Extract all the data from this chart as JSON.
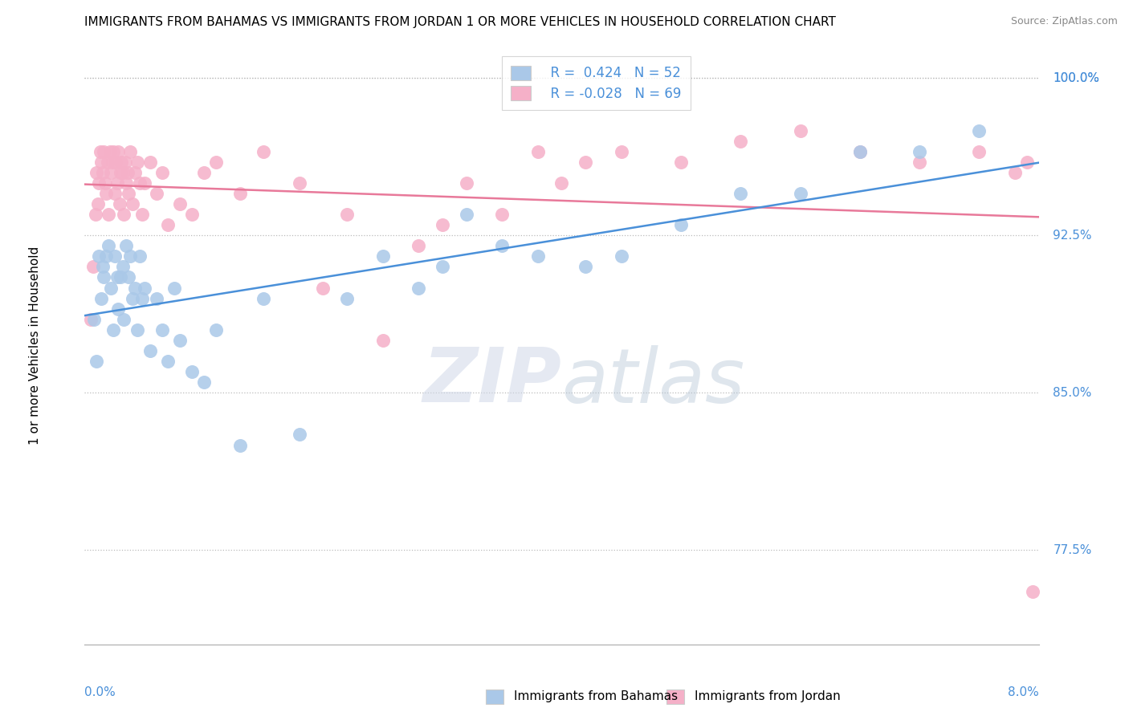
{
  "title": "IMMIGRANTS FROM BAHAMAS VS IMMIGRANTS FROM JORDAN 1 OR MORE VEHICLES IN HOUSEHOLD CORRELATION CHART",
  "source": "Source: ZipAtlas.com",
  "ylabel": "1 or more Vehicles in Household",
  "xmin": 0.0,
  "xmax": 8.0,
  "ymin": 73.0,
  "ymax": 101.5,
  "yticks": [
    77.5,
    85.0,
    92.5,
    100.0
  ],
  "legend_blue_r": "R =  0.424",
  "legend_blue_n": "N = 52",
  "legend_pink_r": "R = -0.028",
  "legend_pink_n": "N = 69",
  "blue_scatter_color": "#aac8e8",
  "pink_scatter_color": "#f5b0c8",
  "blue_line_color": "#4a90d9",
  "pink_line_color": "#e8799a",
  "label_blue": "Immigrants from Bahamas",
  "label_pink": "Immigrants from Jordan",
  "watermark_zip": "ZIP",
  "watermark_atlas": "atlas",
  "bahamas_points": [
    [
      0.08,
      88.5
    ],
    [
      0.1,
      86.5
    ],
    [
      0.12,
      91.5
    ],
    [
      0.14,
      89.5
    ],
    [
      0.15,
      91.0
    ],
    [
      0.16,
      90.5
    ],
    [
      0.18,
      91.5
    ],
    [
      0.2,
      92.0
    ],
    [
      0.22,
      90.0
    ],
    [
      0.24,
      88.0
    ],
    [
      0.25,
      91.5
    ],
    [
      0.27,
      90.5
    ],
    [
      0.28,
      89.0
    ],
    [
      0.3,
      90.5
    ],
    [
      0.32,
      91.0
    ],
    [
      0.33,
      88.5
    ],
    [
      0.35,
      92.0
    ],
    [
      0.37,
      90.5
    ],
    [
      0.38,
      91.5
    ],
    [
      0.4,
      89.5
    ],
    [
      0.42,
      90.0
    ],
    [
      0.44,
      88.0
    ],
    [
      0.46,
      91.5
    ],
    [
      0.48,
      89.5
    ],
    [
      0.5,
      90.0
    ],
    [
      0.55,
      87.0
    ],
    [
      0.6,
      89.5
    ],
    [
      0.65,
      88.0
    ],
    [
      0.7,
      86.5
    ],
    [
      0.75,
      90.0
    ],
    [
      0.8,
      87.5
    ],
    [
      0.9,
      86.0
    ],
    [
      1.0,
      85.5
    ],
    [
      1.1,
      88.0
    ],
    [
      1.3,
      82.5
    ],
    [
      1.5,
      89.5
    ],
    [
      1.8,
      83.0
    ],
    [
      2.2,
      89.5
    ],
    [
      2.5,
      91.5
    ],
    [
      2.8,
      90.0
    ],
    [
      3.0,
      91.0
    ],
    [
      3.2,
      93.5
    ],
    [
      3.5,
      92.0
    ],
    [
      3.8,
      91.5
    ],
    [
      4.2,
      91.0
    ],
    [
      4.5,
      91.5
    ],
    [
      5.0,
      93.0
    ],
    [
      5.5,
      94.5
    ],
    [
      6.0,
      94.5
    ],
    [
      6.5,
      96.5
    ],
    [
      7.0,
      96.5
    ],
    [
      7.5,
      97.5
    ]
  ],
  "jordan_points": [
    [
      0.05,
      88.5
    ],
    [
      0.07,
      91.0
    ],
    [
      0.09,
      93.5
    ],
    [
      0.1,
      95.5
    ],
    [
      0.11,
      94.0
    ],
    [
      0.12,
      95.0
    ],
    [
      0.13,
      96.5
    ],
    [
      0.14,
      96.0
    ],
    [
      0.15,
      95.5
    ],
    [
      0.16,
      96.5
    ],
    [
      0.17,
      95.0
    ],
    [
      0.18,
      94.5
    ],
    [
      0.19,
      96.0
    ],
    [
      0.2,
      93.5
    ],
    [
      0.21,
      96.5
    ],
    [
      0.22,
      95.5
    ],
    [
      0.23,
      96.0
    ],
    [
      0.24,
      96.5
    ],
    [
      0.25,
      94.5
    ],
    [
      0.26,
      96.0
    ],
    [
      0.27,
      95.0
    ],
    [
      0.28,
      96.5
    ],
    [
      0.29,
      94.0
    ],
    [
      0.3,
      95.5
    ],
    [
      0.31,
      96.0
    ],
    [
      0.32,
      95.5
    ],
    [
      0.33,
      93.5
    ],
    [
      0.34,
      96.0
    ],
    [
      0.35,
      95.0
    ],
    [
      0.36,
      95.5
    ],
    [
      0.37,
      94.5
    ],
    [
      0.38,
      96.5
    ],
    [
      0.4,
      94.0
    ],
    [
      0.42,
      95.5
    ],
    [
      0.44,
      96.0
    ],
    [
      0.46,
      95.0
    ],
    [
      0.48,
      93.5
    ],
    [
      0.5,
      95.0
    ],
    [
      0.55,
      96.0
    ],
    [
      0.6,
      94.5
    ],
    [
      0.65,
      95.5
    ],
    [
      0.7,
      93.0
    ],
    [
      0.8,
      94.0
    ],
    [
      0.9,
      93.5
    ],
    [
      1.0,
      95.5
    ],
    [
      1.1,
      96.0
    ],
    [
      1.3,
      94.5
    ],
    [
      1.5,
      96.5
    ],
    [
      1.8,
      95.0
    ],
    [
      2.0,
      90.0
    ],
    [
      2.2,
      93.5
    ],
    [
      2.5,
      87.5
    ],
    [
      2.8,
      92.0
    ],
    [
      3.0,
      93.0
    ],
    [
      3.2,
      95.0
    ],
    [
      3.5,
      93.5
    ],
    [
      3.8,
      96.5
    ],
    [
      4.0,
      95.0
    ],
    [
      4.2,
      96.0
    ],
    [
      4.5,
      96.5
    ],
    [
      5.0,
      96.0
    ],
    [
      5.5,
      97.0
    ],
    [
      6.0,
      97.5
    ],
    [
      6.5,
      96.5
    ],
    [
      7.0,
      96.0
    ],
    [
      7.5,
      96.5
    ],
    [
      7.8,
      95.5
    ],
    [
      7.9,
      96.0
    ],
    [
      7.95,
      75.5
    ]
  ]
}
